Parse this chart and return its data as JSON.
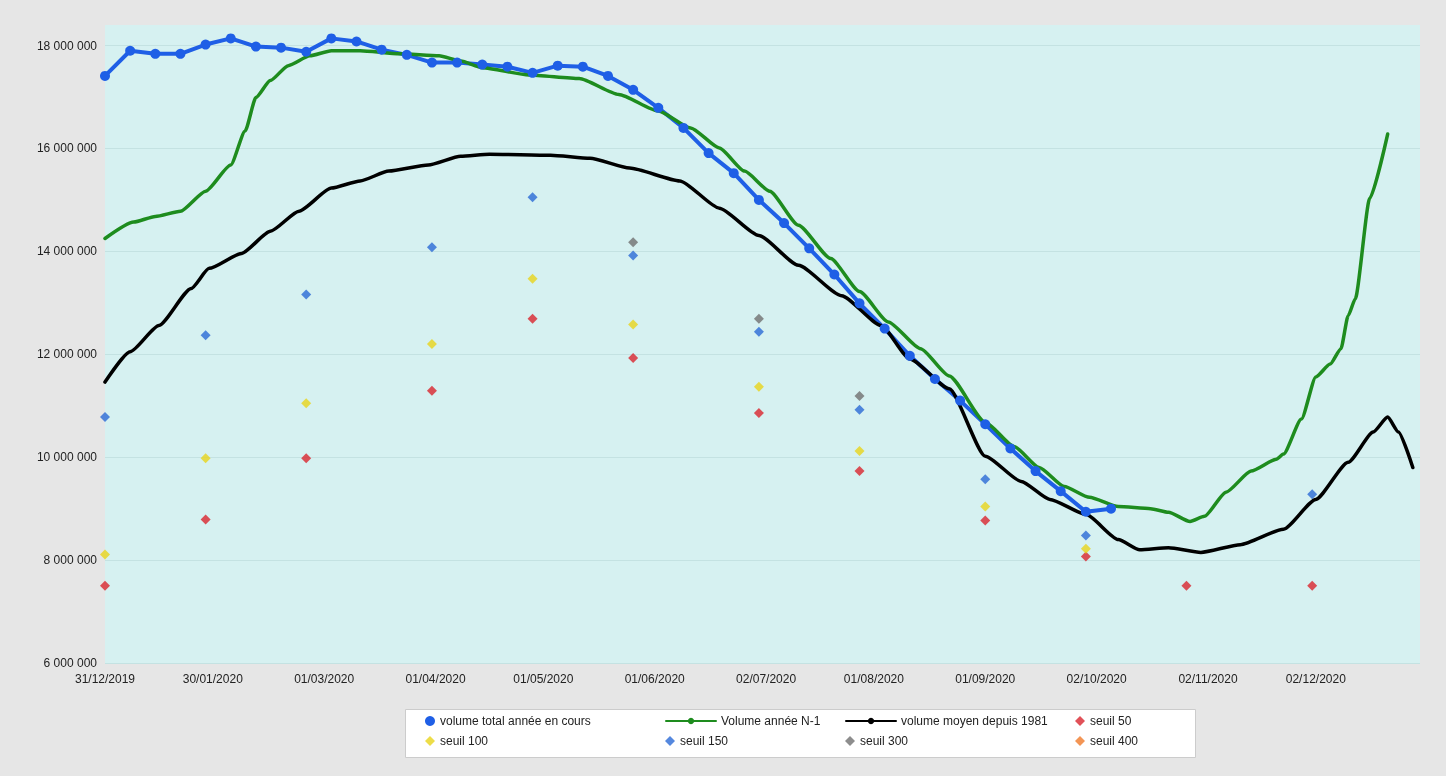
{
  "chart_data": {
    "type": "line",
    "xlim": [
      "2019-12-31",
      "2020-12-31"
    ],
    "xticks": [
      {
        "value": "2019-12-31",
        "label": "31/12/2019"
      },
      {
        "value": "2020-01-30",
        "label": "30/01/2020"
      },
      {
        "value": "2020-03-01",
        "label": "01/03/2020"
      },
      {
        "value": "2020-04-01",
        "label": "01/04/2020"
      },
      {
        "value": "2020-05-01",
        "label": "01/05/2020"
      },
      {
        "value": "2020-06-01",
        "label": "01/06/2020"
      },
      {
        "value": "2020-07-02",
        "label": "02/07/2020"
      },
      {
        "value": "2020-08-01",
        "label": "01/08/2020"
      },
      {
        "value": "2020-09-01",
        "label": "01/09/2020"
      },
      {
        "value": "2020-10-02",
        "label": "02/10/2020"
      },
      {
        "value": "2020-11-02",
        "label": "02/11/2020"
      },
      {
        "value": "2020-12-02",
        "label": "02/12/2020"
      }
    ],
    "ylim": [
      6000000,
      18400000
    ],
    "yticks": [
      {
        "value": 6000000,
        "label": "6 000 000"
      },
      {
        "value": 8000000,
        "label": "8 000 000"
      },
      {
        "value": 10000000,
        "label": "10 000 000"
      },
      {
        "value": 12000000,
        "label": "12 000 000"
      },
      {
        "value": 14000000,
        "label": "14 000 000"
      },
      {
        "value": 16000000,
        "label": "16 000 000"
      },
      {
        "value": 18000000,
        "label": "18 000 000"
      }
    ],
    "grid": "y",
    "legend": "bottom",
    "series": [
      {
        "name": "volume total année en cours",
        "marker": "circle",
        "color": "#1f5fe6",
        "x": [
          "2019-12-31",
          "2020-01-07",
          "2020-01-14",
          "2020-01-21",
          "2020-01-28",
          "2020-02-04",
          "2020-02-11",
          "2020-02-18",
          "2020-02-25",
          "2020-03-03",
          "2020-03-10",
          "2020-03-17",
          "2020-03-24",
          "2020-03-31",
          "2020-04-07",
          "2020-04-14",
          "2020-04-21",
          "2020-04-28",
          "2020-05-05",
          "2020-05-12",
          "2020-05-19",
          "2020-05-26",
          "2020-06-02",
          "2020-06-09",
          "2020-06-16",
          "2020-06-23",
          "2020-06-30",
          "2020-07-07",
          "2020-07-14",
          "2020-07-21",
          "2020-07-28",
          "2020-08-04",
          "2020-08-11",
          "2020-08-18",
          "2020-08-25",
          "2020-09-01",
          "2020-09-08",
          "2020-09-15",
          "2020-09-22",
          "2020-09-29",
          "2020-10-06"
        ],
        "values": [
          17410000,
          17900000,
          17840000,
          17840000,
          18020000,
          18140000,
          17980000,
          17960000,
          17880000,
          18140000,
          18080000,
          17920000,
          17820000,
          17670000,
          17670000,
          17630000,
          17590000,
          17470000,
          17610000,
          17590000,
          17410000,
          17140000,
          16790000,
          16400000,
          15910000,
          15520000,
          15000000,
          14550000,
          14060000,
          13550000,
          12990000,
          12500000,
          11970000,
          11520000,
          11100000,
          10640000,
          10170000,
          9730000,
          9340000,
          8940000,
          9000000
        ]
      },
      {
        "name": "Volume année N-1",
        "marker": "none",
        "color": "#1e8c1e",
        "x": [
          "2019-12-31",
          "2020-01-08",
          "2020-01-14",
          "2020-01-21",
          "2020-01-28",
          "2020-02-04",
          "2020-02-08",
          "2020-02-11",
          "2020-02-15",
          "2020-02-20",
          "2020-02-26",
          "2020-03-03",
          "2020-03-11",
          "2020-03-22",
          "2020-04-02",
          "2020-04-08",
          "2020-04-14",
          "2020-04-27",
          "2020-05-11",
          "2020-05-22",
          "2020-06-02",
          "2020-06-11",
          "2020-06-19",
          "2020-06-26",
          "2020-07-03",
          "2020-07-11",
          "2020-07-20",
          "2020-07-28",
          "2020-08-05",
          "2020-08-14",
          "2020-08-22",
          "2020-09-01",
          "2020-09-09",
          "2020-09-16",
          "2020-09-23",
          "2020-09-30",
          "2020-10-08",
          "2020-10-17",
          "2020-10-22",
          "2020-10-28",
          "2020-11-01",
          "2020-11-07",
          "2020-11-14",
          "2020-11-21",
          "2020-11-23",
          "2020-11-28",
          "2020-12-02",
          "2020-12-06",
          "2020-12-09",
          "2020-12-11",
          "2020-12-13",
          "2020-12-17",
          "2020-12-22"
        ],
        "values": [
          14250000,
          14570000,
          14680000,
          14780000,
          15170000,
          15680000,
          16340000,
          16990000,
          17320000,
          17610000,
          17800000,
          17900000,
          17900000,
          17840000,
          17800000,
          17700000,
          17570000,
          17430000,
          17360000,
          17050000,
          16730000,
          16400000,
          16010000,
          15560000,
          15170000,
          14510000,
          13860000,
          13220000,
          12630000,
          12110000,
          11580000,
          10680000,
          10210000,
          9800000,
          9430000,
          9220000,
          9040000,
          9000000,
          8930000,
          8750000,
          8850000,
          9320000,
          9730000,
          9960000,
          10060000,
          10740000,
          11560000,
          11810000,
          12110000,
          12750000,
          13080000,
          15030000,
          16280000
        ]
      },
      {
        "name": "volume moyen depuis 1981",
        "marker": "none",
        "color": "#000000",
        "x": [
          "2019-12-31",
          "2020-01-07",
          "2020-01-15",
          "2020-01-24",
          "2020-01-29",
          "2020-02-07",
          "2020-02-15",
          "2020-02-23",
          "2020-03-03",
          "2020-03-11",
          "2020-03-19",
          "2020-03-30",
          "2020-04-08",
          "2020-04-16",
          "2020-05-03",
          "2020-05-14",
          "2020-05-25",
          "2020-06-08",
          "2020-06-19",
          "2020-06-30",
          "2020-07-11",
          "2020-07-23",
          "2020-08-03",
          "2020-08-11",
          "2020-08-22",
          "2020-09-01",
          "2020-09-11",
          "2020-09-19",
          "2020-09-29",
          "2020-10-08",
          "2020-10-14",
          "2020-10-22",
          "2020-10-31",
          "2020-11-11",
          "2020-11-23",
          "2020-12-02",
          "2020-12-11",
          "2020-12-18",
          "2020-12-22",
          "2020-12-25",
          "2020-12-29"
        ],
        "values": [
          11460000,
          12050000,
          12560000,
          13280000,
          13670000,
          13960000,
          14390000,
          14780000,
          15230000,
          15370000,
          15560000,
          15680000,
          15850000,
          15890000,
          15870000,
          15810000,
          15620000,
          15370000,
          14840000,
          14310000,
          13730000,
          13140000,
          12560000,
          11910000,
          11330000,
          10020000,
          9530000,
          9180000,
          8890000,
          8400000,
          8200000,
          8240000,
          8150000,
          8300000,
          8600000,
          9180000,
          9900000,
          10490000,
          10780000,
          10490000,
          9800000
        ]
      },
      {
        "name": "seuil 50",
        "type": "scatter",
        "marker": "diamond",
        "color": "#d9262e",
        "x": [
          "2019-12-31",
          "2020-01-28",
          "2020-02-25",
          "2020-03-31",
          "2020-04-28",
          "2020-05-26",
          "2020-06-30",
          "2020-07-28",
          "2020-09-01",
          "2020-09-29",
          "2020-10-27",
          "2020-12-01"
        ],
        "values": [
          7500000,
          8790000,
          9980000,
          11290000,
          12690000,
          11930000,
          10860000,
          9730000,
          8770000,
          8070000,
          7500000,
          7500000
        ]
      },
      {
        "name": "seuil 100",
        "type": "scatter",
        "marker": "diamond",
        "color": "#e8d41c",
        "x": [
          "2019-12-31",
          "2020-01-28",
          "2020-02-25",
          "2020-03-31",
          "2020-04-28",
          "2020-05-26",
          "2020-06-30",
          "2020-07-28",
          "2020-09-01",
          "2020-09-29"
        ],
        "values": [
          8110000,
          9980000,
          11050000,
          12200000,
          13470000,
          12580000,
          11370000,
          10120000,
          9040000,
          8220000
        ]
      },
      {
        "name": "seuil 150",
        "type": "scatter",
        "marker": "diamond",
        "color": "#2b6ad6",
        "x": [
          "2019-12-31",
          "2020-01-28",
          "2020-02-25",
          "2020-03-31",
          "2020-04-28",
          "2020-05-26",
          "2020-06-30",
          "2020-07-28",
          "2020-09-01",
          "2020-09-29",
          "2020-12-01"
        ],
        "values": [
          10780000,
          12370000,
          13160000,
          14080000,
          15050000,
          13920000,
          12440000,
          10920000,
          9570000,
          8480000,
          9280000
        ]
      },
      {
        "name": "seuil 300",
        "type": "scatter",
        "marker": "diamond",
        "color": "#707070",
        "x": [
          "2020-05-26",
          "2020-06-30",
          "2020-07-28"
        ],
        "values": [
          14180000,
          12690000,
          11190000
        ]
      },
      {
        "name": "seuil 400",
        "type": "scatter",
        "marker": "diamond",
        "color": "#f07a2a"
      }
    ]
  }
}
